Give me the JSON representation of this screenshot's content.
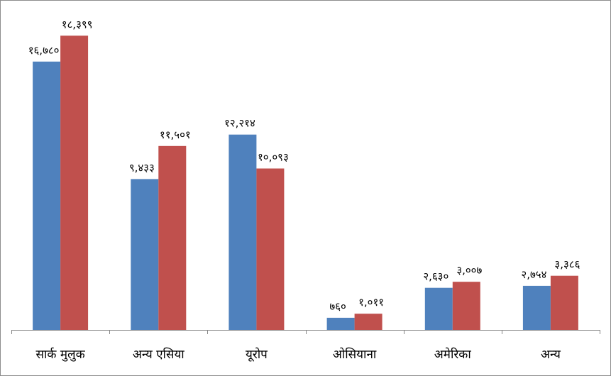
{
  "chart_data": {
    "type": "bar",
    "title": "",
    "xlabel": "",
    "ylabel": "",
    "ylim": [
      0,
      19300
    ],
    "grid": false,
    "legend": "none",
    "categories": [
      "सार्क मुलुक",
      "अन्य एसिया",
      "यूरोप",
      "ओसियाना",
      "अमेरिका",
      "अन्य"
    ],
    "series": [
      {
        "color": "#4f81bd",
        "values": [
          16780,
          9433,
          12214,
          760,
          2630,
          2754
        ],
        "labels": [
          "१६,७८०",
          "९,४३३",
          "१२,२१४",
          "७६०",
          "२,६३०",
          "२,७५४"
        ]
      },
      {
        "color": "#c0504d",
        "values": [
          18399,
          11501,
          10093,
          1011,
          3007,
          3386
        ],
        "labels": [
          "१८,३९९",
          "११,५०१",
          "१०,०९३",
          "१,०११",
          "३,००७",
          "३,३८६"
        ]
      }
    ]
  }
}
